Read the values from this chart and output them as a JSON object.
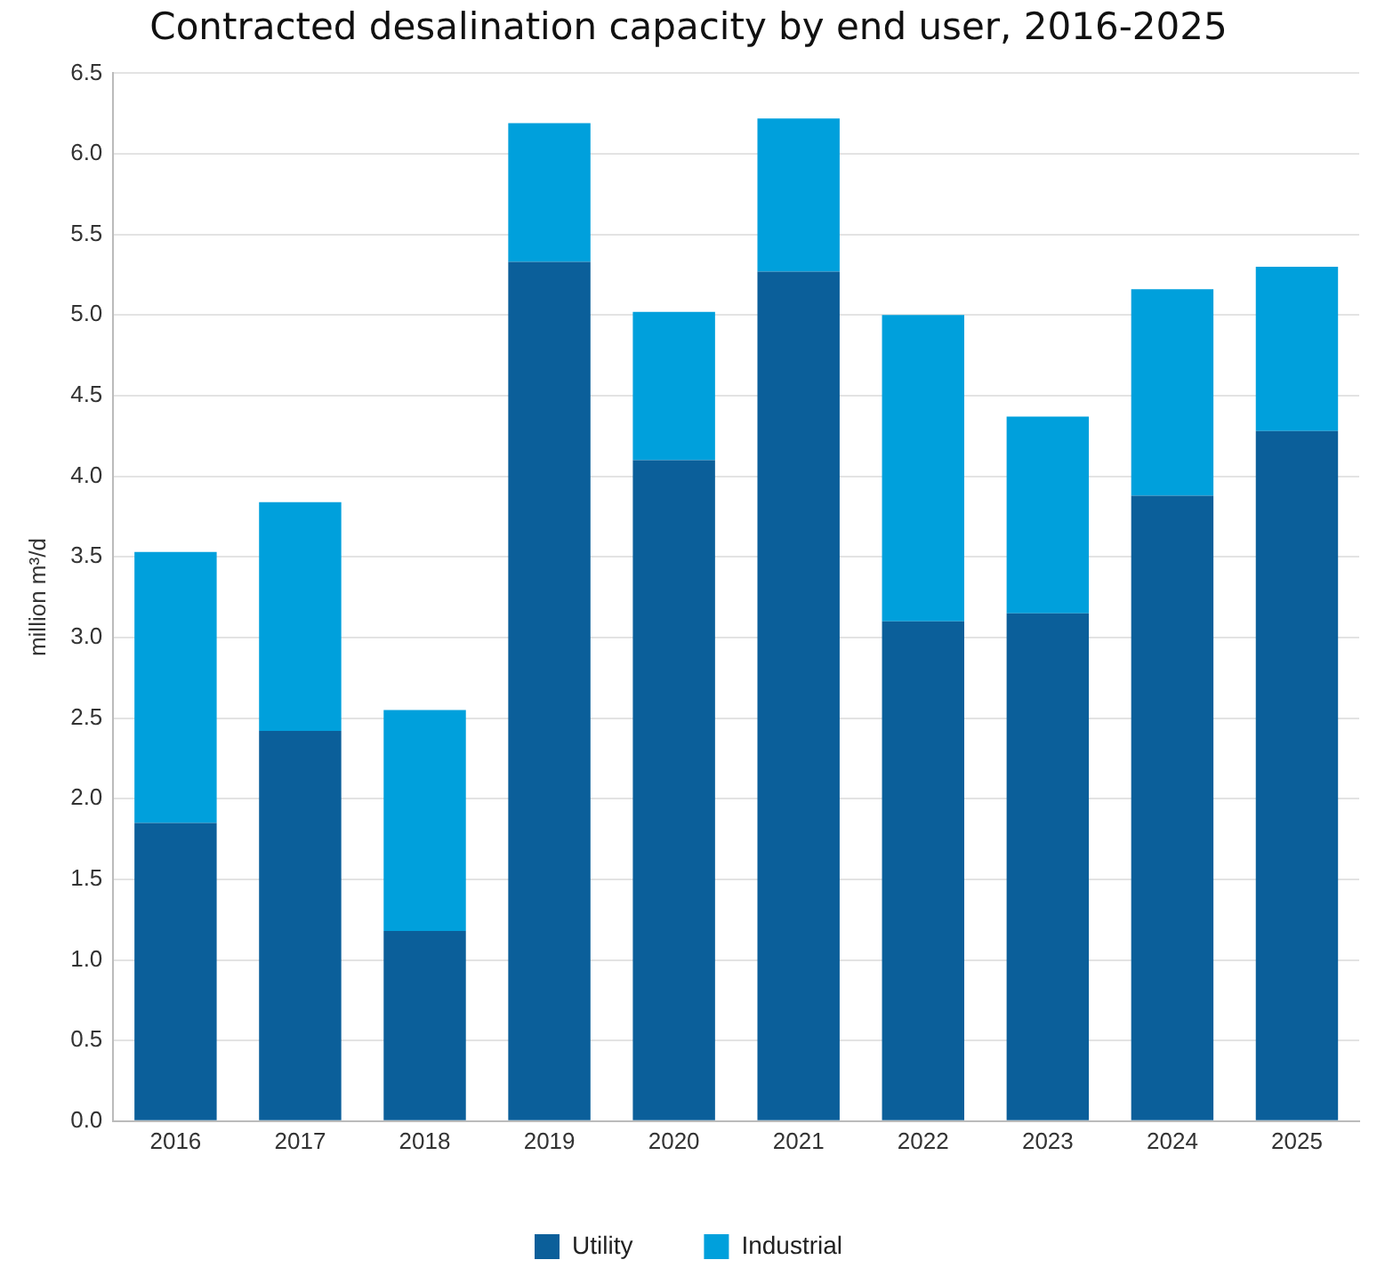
{
  "chart_data": {
    "type": "bar",
    "title": "Contracted desalination capacity by end user, 2016-2025",
    "ylabel": "million m³/d",
    "categories": [
      "2016",
      "2017",
      "2018",
      "2019",
      "2020",
      "2021",
      "2022",
      "2023",
      "2024",
      "2025"
    ],
    "series": [
      {
        "name": "Utility",
        "color": "#0b5f9a",
        "values": [
          1.85,
          2.42,
          1.18,
          5.33,
          4.1,
          5.27,
          3.1,
          3.15,
          3.88,
          4.28
        ]
      },
      {
        "name": "Industrial",
        "color": "#00a0dc",
        "values": [
          1.68,
          1.42,
          1.37,
          0.86,
          0.92,
          0.95,
          1.9,
          1.22,
          1.28,
          1.02
        ]
      }
    ],
    "stacked": true,
    "ylim": [
      0,
      6.5
    ],
    "yticks": [
      {
        "value": 0,
        "label": "0.0"
      },
      {
        "value": 0.5,
        "label": "0.5"
      },
      {
        "value": 1,
        "label": "1.0"
      },
      {
        "value": 1.5,
        "label": "1.5"
      },
      {
        "value": 2,
        "label": "2.0"
      },
      {
        "value": 2.5,
        "label": "2.5"
      },
      {
        "value": 3,
        "label": "3.0"
      },
      {
        "value": 3.5,
        "label": "3.5"
      },
      {
        "value": 4,
        "label": "4.0"
      },
      {
        "value": 4.5,
        "label": "4.5"
      },
      {
        "value": 5,
        "label": "5.0"
      },
      {
        "value": 5.5,
        "label": "5.5"
      },
      {
        "value": 6,
        "label": "6.0"
      },
      {
        "value": 6.5,
        "label": "6.5"
      }
    ],
    "grid": "y",
    "legend": "bottom"
  }
}
